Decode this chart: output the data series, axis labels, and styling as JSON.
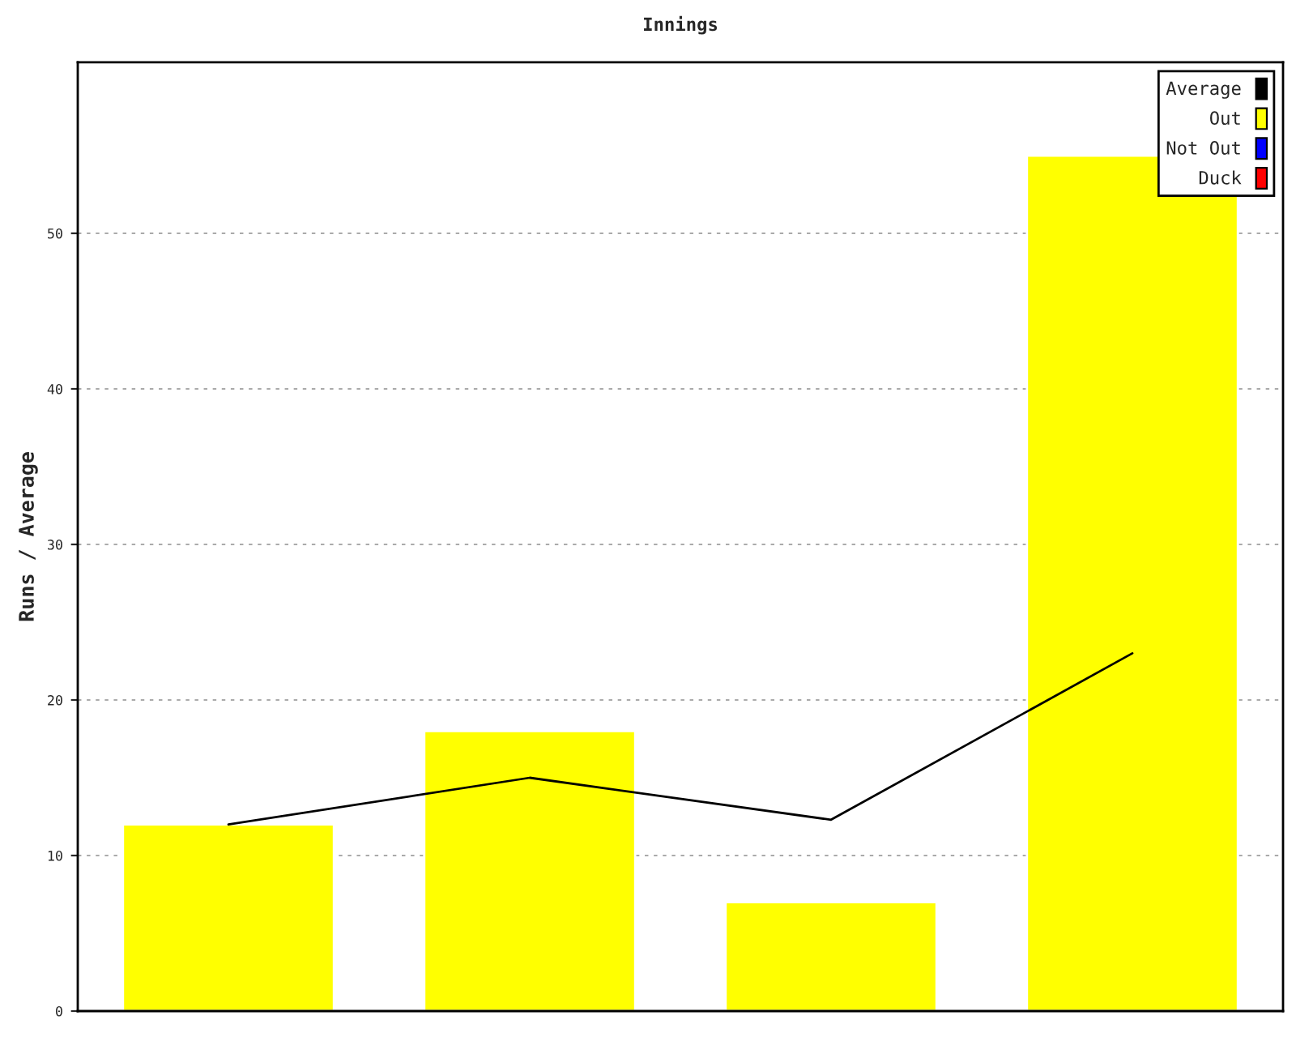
{
  "chart_data": {
    "type": "bar",
    "title": "Innings",
    "ylabel": "Runs / Average",
    "categories": [
      null,
      null,
      null,
      null
    ],
    "series": [
      {
        "name": "Average",
        "type": "line",
        "color": "#000000",
        "values": [
          12,
          15,
          12.3,
          23
        ]
      },
      {
        "name": "Out",
        "color": "#ffff00",
        "values": [
          12,
          18,
          7,
          55
        ]
      },
      {
        "name": "Not Out",
        "color": "#0000ff",
        "values": [
          null,
          null,
          null,
          null
        ]
      },
      {
        "name": "Duck",
        "color": "#ff0000",
        "values": [
          null,
          null,
          null,
          null
        ]
      }
    ],
    "ylim": [
      0,
      61
    ],
    "yticks": [
      0,
      10,
      20,
      30,
      40,
      50
    ],
    "grid": "y",
    "legend": "top right",
    "tick_labels": "y"
  }
}
